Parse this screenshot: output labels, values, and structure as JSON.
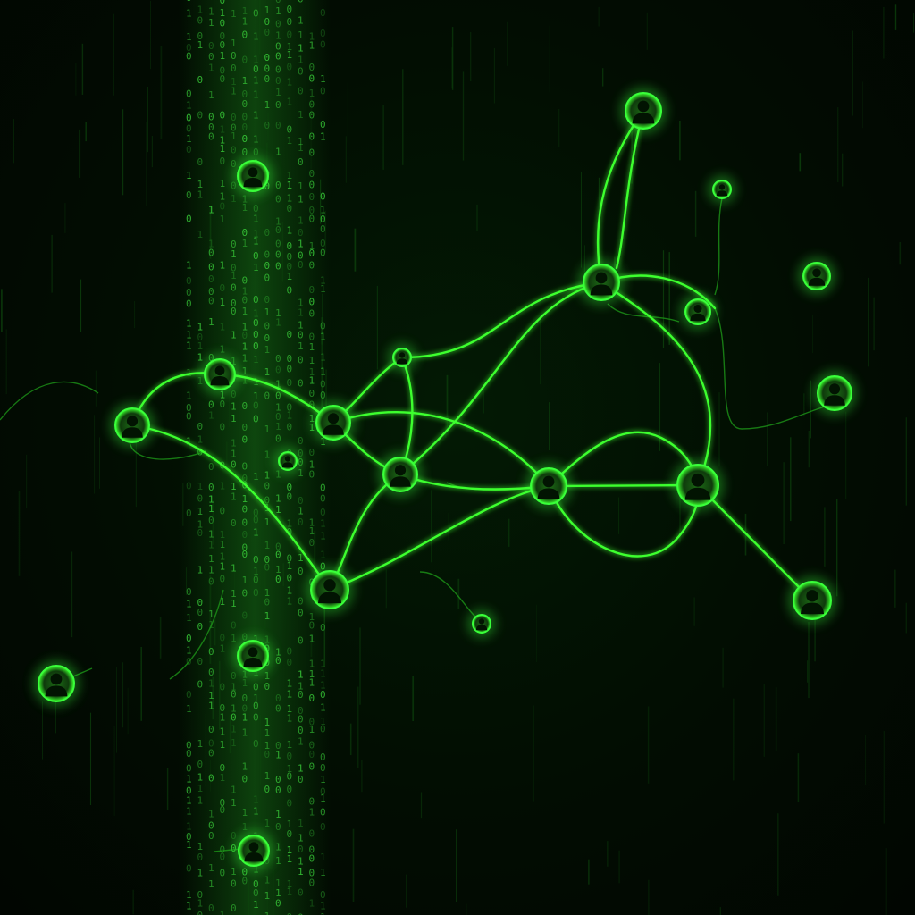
{
  "scene": {
    "colors": {
      "background": "#020d02",
      "glow": "#39ff3a",
      "link": "#3cff2e",
      "faint_link": "#1f9e1a",
      "node_fill": "#0c2a0c",
      "avatar": "#021402",
      "rain": "#0e4a0e",
      "code": "#37c737"
    },
    "elements": {
      "background": "dark-green-digital-rain",
      "code_stream": "vertical-binary-code-column",
      "network": "glowing-social-network-graph",
      "node_icon": "person-silhouette-icon"
    }
  }
}
